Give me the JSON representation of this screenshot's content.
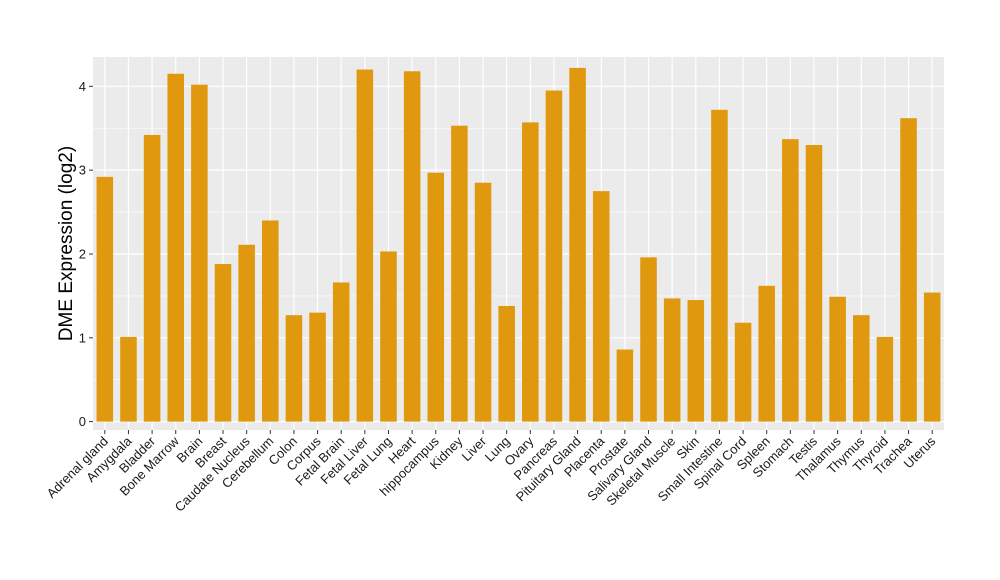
{
  "chart_data": {
    "type": "bar",
    "ylabel": "DME Expression (log2)",
    "xlabel": "",
    "ylim": [
      -0.1,
      4.35
    ],
    "yticks": [
      0,
      1,
      2,
      3,
      4
    ],
    "grid": true,
    "bar_color": "#E0990F",
    "panel_background": "#EBEBEB",
    "categories": [
      "Adrenal gland",
      "Amygdala",
      "Bladder",
      "Bone Marrow",
      "Brain",
      "Breast",
      "Caudate Nucleus",
      "Cerebellum",
      "Colon",
      "Corpus",
      "Fetal Brain",
      "Fetal Liver",
      "Fetal Lung",
      "Heart",
      "hippocampus",
      "Kidney",
      "Liver",
      "Lung",
      "Ovary",
      "Pancreas",
      "Pituitary Gland",
      "Placenta",
      "Prostate",
      "Salivary Gland",
      "Skeletal Muscle",
      "Skin",
      "Small Intestine",
      "Spinal Cord",
      "Spleen",
      "Stomach",
      "Testis",
      "Thalamus",
      "Thymus",
      "Thyroid",
      "Trachea",
      "Uterus"
    ],
    "values": [
      2.92,
      1.01,
      3.42,
      4.15,
      4.02,
      1.88,
      2.11,
      2.4,
      1.27,
      1.3,
      1.66,
      4.2,
      2.03,
      4.18,
      2.97,
      3.53,
      2.85,
      1.38,
      3.57,
      3.95,
      4.22,
      2.75,
      0.86,
      1.96,
      1.47,
      1.45,
      3.72,
      1.18,
      1.62,
      3.37,
      3.3,
      1.49,
      1.27,
      1.01,
      3.62,
      1.54
    ]
  }
}
